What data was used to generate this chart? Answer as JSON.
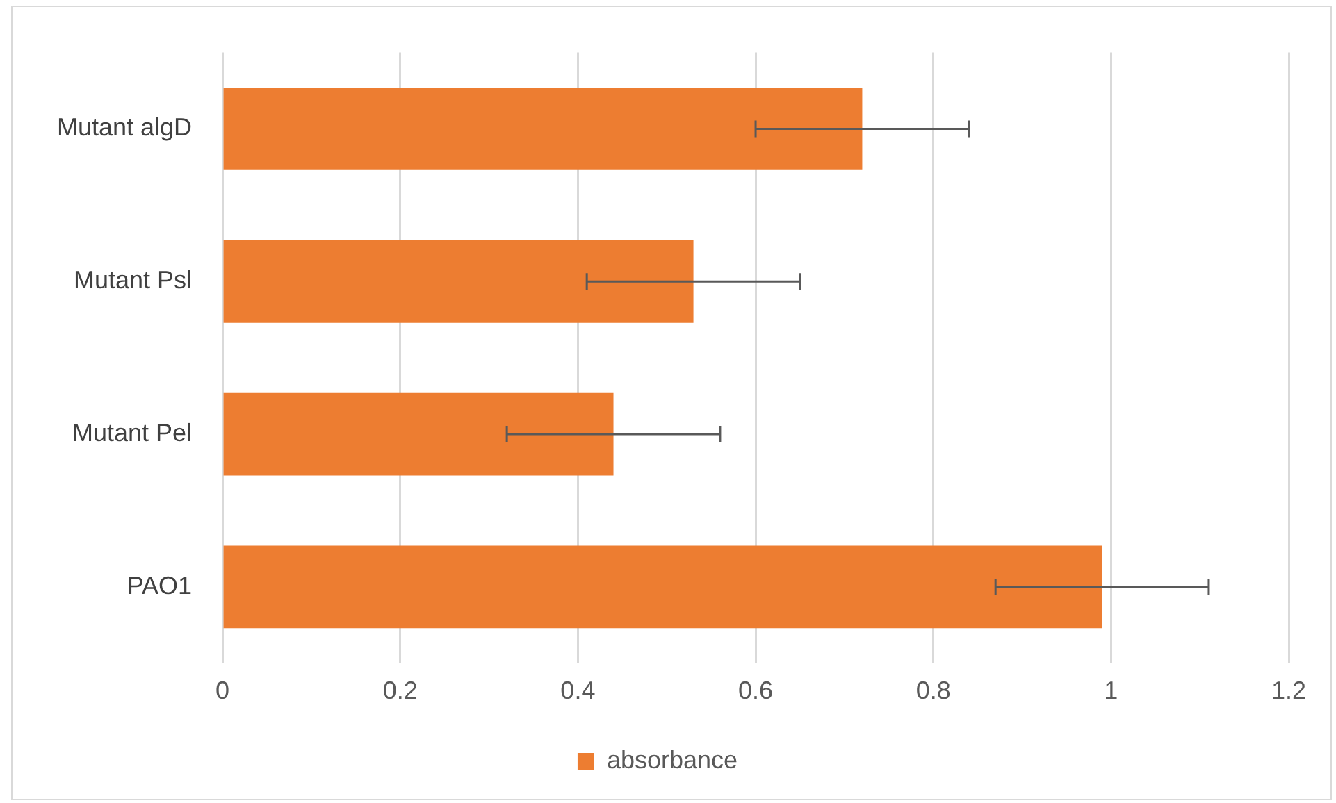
{
  "chart_data": {
    "type": "bar",
    "orientation": "horizontal",
    "categories": [
      "Mutant algD",
      "Mutant Psl",
      "Mutant Pel",
      "PAO1"
    ],
    "series": [
      {
        "name": "absorbance",
        "color": "#ed7d31",
        "values": [
          0.72,
          0.53,
          0.44,
          0.99
        ],
        "errors": [
          0.12,
          0.12,
          0.12,
          0.12
        ]
      }
    ],
    "xlim": [
      0,
      1.2
    ],
    "xticks": [
      0,
      0.2,
      0.4,
      0.6,
      0.8,
      1,
      1.2
    ],
    "grid": "x",
    "legend": "bottom"
  }
}
